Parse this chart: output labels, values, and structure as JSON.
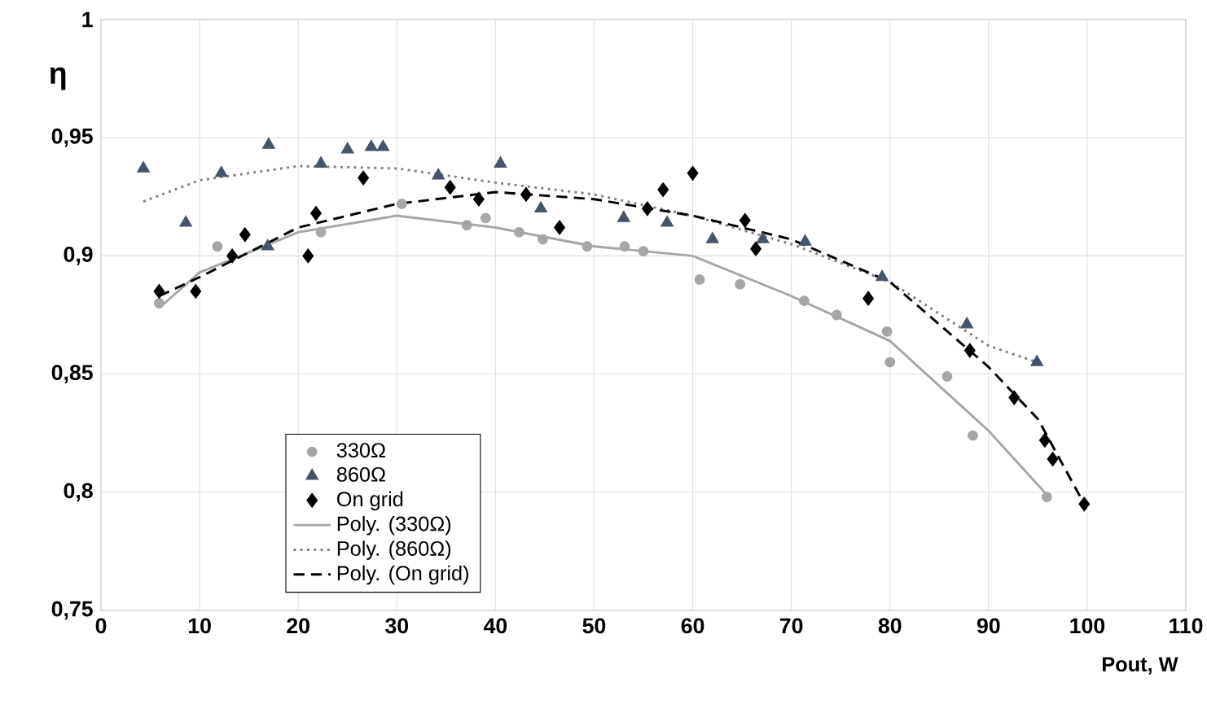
{
  "chart_data": {
    "type": "scatter",
    "xlabel": "Pout, W",
    "ylabel": "η",
    "xlim": [
      0,
      110
    ],
    "xticks": [
      0,
      10,
      20,
      30,
      40,
      50,
      60,
      70,
      80,
      90,
      100,
      110
    ],
    "ylim": [
      0.75,
      1
    ],
    "yticks": [
      {
        "value": 0.75,
        "label": "0,75"
      },
      {
        "value": 0.8,
        "label": "0,8"
      },
      {
        "value": 0.85,
        "label": "0,85"
      },
      {
        "value": 0.9,
        "label": "0,9"
      },
      {
        "value": 0.95,
        "label": "0,95"
      },
      {
        "value": 1,
        "label": "1"
      }
    ],
    "grid": true,
    "legend": "bottom left",
    "series": [
      {
        "name": "330Ω",
        "marker": "circle",
        "color": "#a6a6a6",
        "x": [
          5.9,
          11.8,
          22.3,
          30.5,
          37.1,
          39.0,
          42.4,
          44.8,
          49.3,
          53.1,
          55.0,
          60.7,
          64.8,
          71.3,
          74.6,
          79.7,
          80.0,
          85.8,
          88.4,
          95.9
        ],
        "values": [
          0.88,
          0.904,
          0.91,
          0.922,
          0.913,
          0.916,
          0.91,
          0.907,
          0.904,
          0.904,
          0.902,
          0.89,
          0.888,
          0.881,
          0.875,
          0.868,
          0.855,
          0.849,
          0.824,
          0.798
        ]
      },
      {
        "name": "860Ω",
        "marker": "triangle",
        "color": "#44546a",
        "x": [
          4.3,
          8.6,
          12.2,
          17.0,
          16.9,
          22.3,
          25.0,
          27.4,
          28.6,
          34.2,
          40.5,
          44.6,
          53.0,
          57.4,
          62.0,
          67.1,
          71.4,
          79.2,
          87.8,
          94.9
        ],
        "values": [
          0.937,
          0.914,
          0.935,
          0.947,
          0.904,
          0.939,
          0.945,
          0.946,
          0.946,
          0.934,
          0.939,
          0.92,
          0.916,
          0.914,
          0.907,
          0.907,
          0.906,
          0.891,
          0.871,
          0.855
        ]
      },
      {
        "name": "On grid",
        "marker": "diamond",
        "color": "#000000",
        "x": [
          5.9,
          9.6,
          13.3,
          14.6,
          21.0,
          21.8,
          26.6,
          35.4,
          38.3,
          43.1,
          46.5,
          55.4,
          57.0,
          60.0,
          65.3,
          66.4,
          77.8,
          88.1,
          92.6,
          95.7,
          96.5,
          99.7
        ],
        "values": [
          0.885,
          0.885,
          0.9,
          0.909,
          0.9,
          0.918,
          0.933,
          0.929,
          0.924,
          0.926,
          0.912,
          0.92,
          0.928,
          0.935,
          0.915,
          0.903,
          0.882,
          0.86,
          0.84,
          0.822,
          0.814,
          0.795
        ]
      },
      {
        "name": "Poly. (330Ω)",
        "type": "line",
        "line_style": "solid",
        "color": "#a6a6a6",
        "x": [
          5.9,
          10,
          20,
          30,
          40,
          50,
          60,
          70,
          80,
          90,
          95.9
        ],
        "values": [
          0.878,
          0.893,
          0.91,
          0.917,
          0.912,
          0.904,
          0.9,
          0.883,
          0.864,
          0.826,
          0.799
        ]
      },
      {
        "name": "Poly. (860Ω)",
        "type": "line",
        "line_style": "dotted",
        "color": "#7f7f7f",
        "x": [
          4.3,
          10,
          20,
          30,
          40,
          50,
          60,
          70,
          80,
          90,
          94.9
        ],
        "values": [
          0.923,
          0.932,
          0.938,
          0.937,
          0.931,
          0.926,
          0.917,
          0.905,
          0.889,
          0.862,
          0.855
        ]
      },
      {
        "name": "Poly. (On grid)",
        "type": "line",
        "line_style": "dashed",
        "color": "#000000",
        "x": [
          5.9,
          10,
          20,
          30,
          40,
          50,
          60,
          70,
          80,
          90,
          95,
          99.7
        ],
        "values": [
          0.883,
          0.891,
          0.912,
          0.922,
          0.927,
          0.924,
          0.917,
          0.907,
          0.889,
          0.853,
          0.831,
          0.795
        ]
      }
    ]
  }
}
